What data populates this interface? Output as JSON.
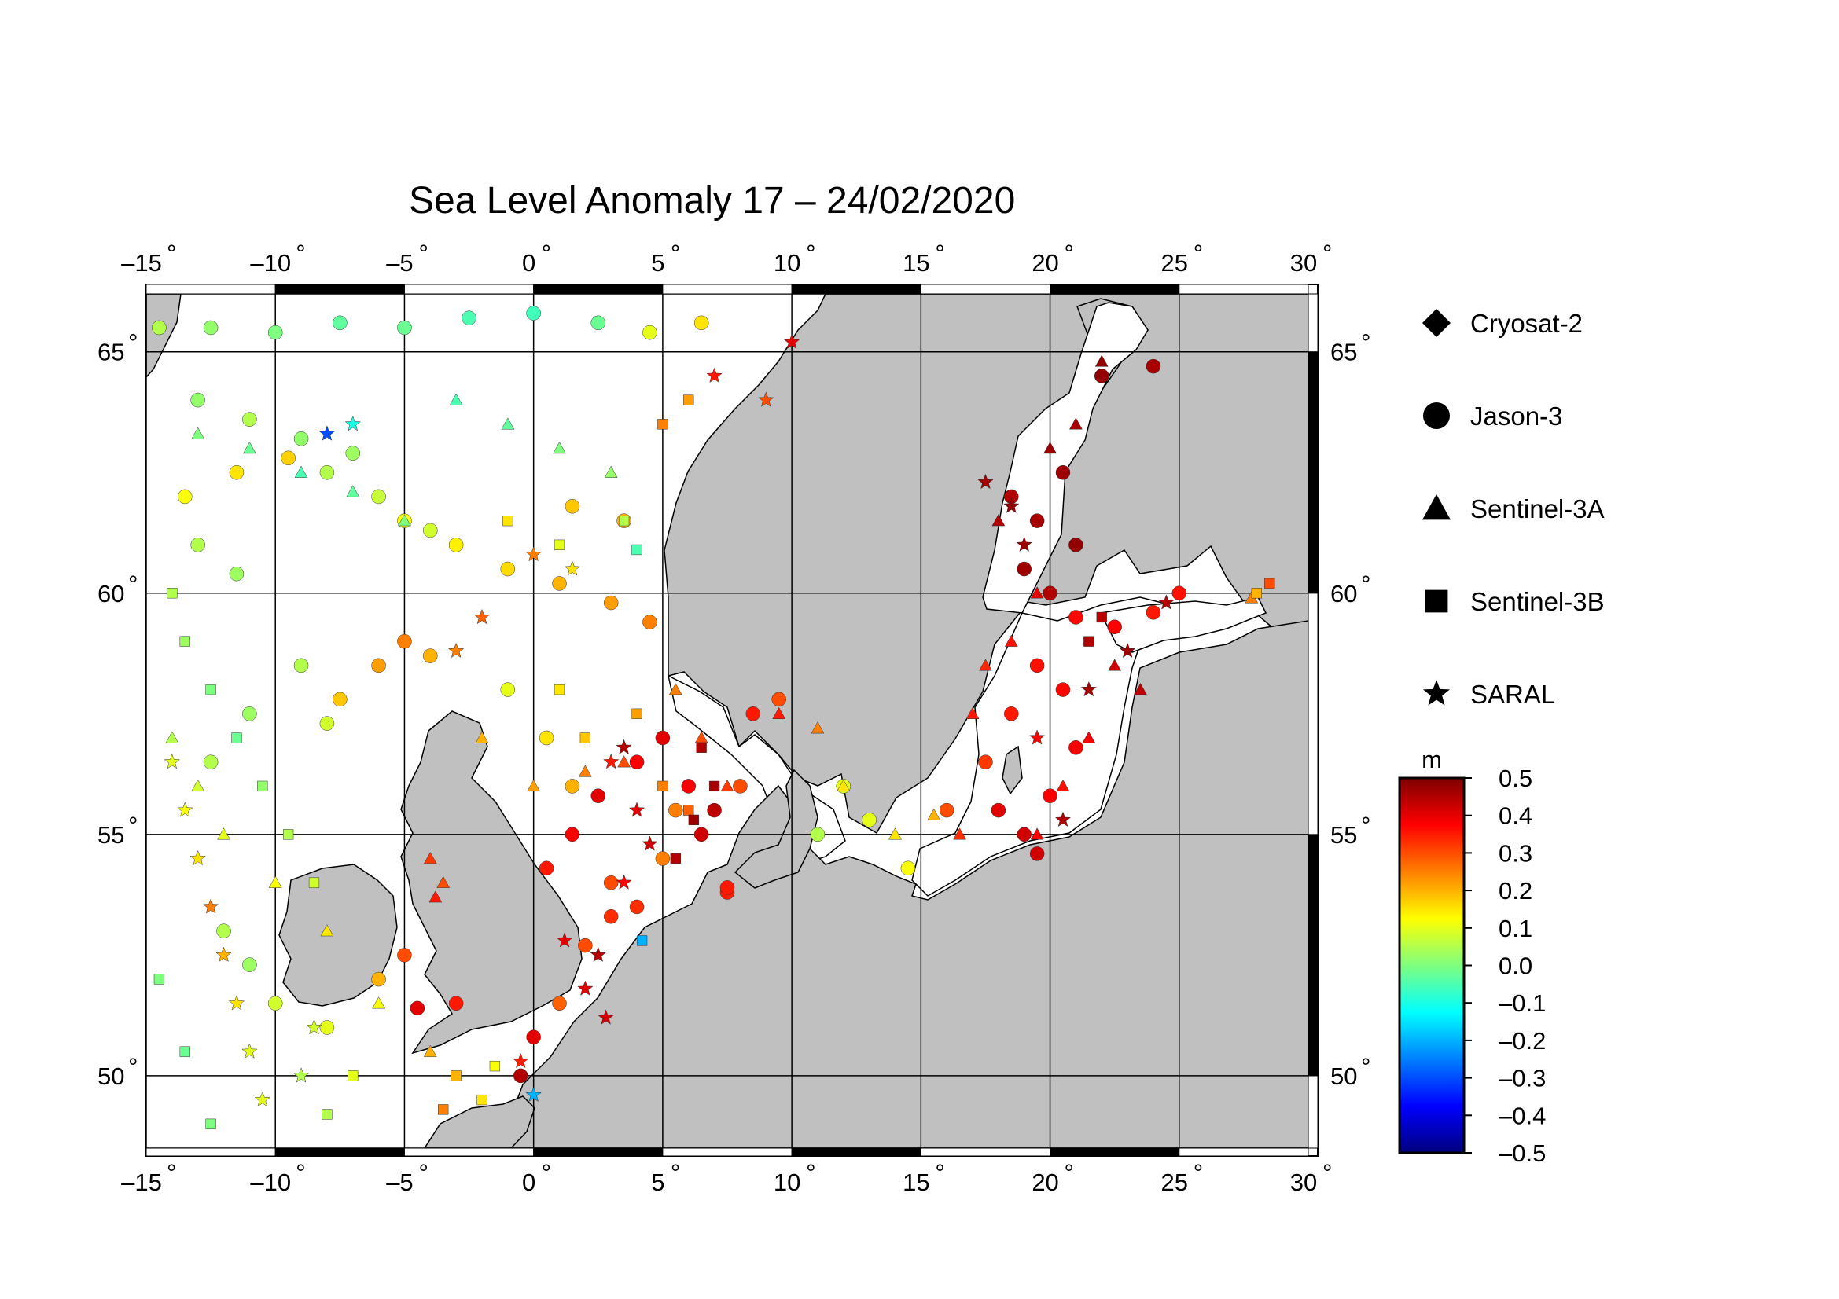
{
  "title": "Sea Level Anomaly 17 – 24/02/2020",
  "map": {
    "lon_range": [
      -15,
      30
    ],
    "lat_range": [
      48.5,
      66.2
    ],
    "lon_ticks": [
      "–15",
      "–10",
      "–5",
      "0",
      "5",
      "10",
      "15",
      "20",
      "25",
      "30"
    ],
    "lat_ticks": [
      "50",
      "55",
      "60",
      "65"
    ],
    "degree_symbol": "°",
    "land_color": "#c0c0c0",
    "sea_color": "#ffffff",
    "grid": true
  },
  "legend": {
    "items": [
      {
        "label": "Cryosat-2",
        "symbol": "diamond-icon"
      },
      {
        "label": "Jason-3",
        "symbol": "circle-icon"
      },
      {
        "label": "Sentinel-3A",
        "symbol": "triangle-icon"
      },
      {
        "label": "Sentinel-3B",
        "symbol": "square-icon"
      },
      {
        "label": "SARAL",
        "symbol": "star-icon"
      }
    ]
  },
  "colorbar": {
    "unit": "m",
    "min": -0.5,
    "max": 0.5,
    "labels": [
      "0.5",
      "0.4",
      "0.3",
      "0.2",
      "0.1",
      "0.0",
      "–0.1",
      "–0.2",
      "–0.3",
      "–0.4",
      "–0.5"
    ],
    "colors": [
      "#00007f",
      "#0000ff",
      "#007fff",
      "#00ffff",
      "#7fff7f",
      "#ffff00",
      "#ff7f00",
      "#ff0000",
      "#7f0000"
    ]
  },
  "chart_data": {
    "type": "scatter",
    "title": "Sea Level Anomaly 17 – 24/02/2020",
    "xlabel": "",
    "ylabel": "",
    "xlim": [
      -15,
      30
    ],
    "ylim": [
      48.5,
      66.2
    ],
    "value_unit": "m",
    "series": [
      {
        "name": "Jason-3",
        "symbol": "circle",
        "points": [
          [
            -14.5,
            65.5,
            0.05
          ],
          [
            -12.5,
            65.5,
            0.02
          ],
          [
            -10,
            65.4,
            0.0
          ],
          [
            -7.5,
            65.6,
            -0.03
          ],
          [
            -5,
            65.5,
            -0.02
          ],
          [
            -2.5,
            65.7,
            -0.05
          ],
          [
            0,
            65.8,
            -0.06
          ],
          [
            2.5,
            65.6,
            -0.02
          ],
          [
            4.5,
            65.4,
            0.1
          ],
          [
            6.5,
            65.6,
            0.15
          ],
          [
            -13,
            64.0,
            0.02
          ],
          [
            -11,
            63.6,
            0.05
          ],
          [
            -9,
            63.2,
            0.02
          ],
          [
            -7,
            62.9,
            0.03
          ],
          [
            -13.5,
            62.0,
            0.12
          ],
          [
            -11.5,
            62.5,
            0.15
          ],
          [
            -9.5,
            62.8,
            0.17
          ],
          [
            -13,
            61.0,
            0.05
          ],
          [
            -11.5,
            60.4,
            0.03
          ],
          [
            -5,
            61.5,
            0.12
          ],
          [
            -3,
            61.0,
            0.14
          ],
          [
            -1,
            60.5,
            0.16
          ],
          [
            1,
            60.2,
            0.2
          ],
          [
            3,
            59.8,
            0.22
          ],
          [
            4.5,
            59.4,
            0.25
          ],
          [
            -8,
            62.5,
            0.05
          ],
          [
            -6,
            62.0,
            0.07
          ],
          [
            -4,
            61.3,
            0.08
          ],
          [
            1.5,
            61.8,
            0.18
          ],
          [
            3.5,
            61.5,
            0.2
          ],
          [
            -9,
            58.5,
            0.05
          ],
          [
            -11,
            57.5,
            0.03
          ],
          [
            -12.5,
            56.5,
            0.05
          ],
          [
            -8,
            57.3,
            0.08
          ],
          [
            -5,
            59.0,
            0.25
          ],
          [
            -6,
            58.5,
            0.22
          ],
          [
            -7.5,
            57.8,
            0.18
          ],
          [
            -4,
            58.7,
            0.2
          ],
          [
            -1,
            58.0,
            0.1
          ],
          [
            0.5,
            57.0,
            0.15
          ],
          [
            1.5,
            56.0,
            0.2
          ],
          [
            2.5,
            55.8,
            0.4
          ],
          [
            1.5,
            55.0,
            0.38
          ],
          [
            0.5,
            54.3,
            0.35
          ],
          [
            3,
            54.0,
            0.3
          ],
          [
            4,
            53.5,
            0.33
          ],
          [
            5,
            54.5,
            0.25
          ],
          [
            5.5,
            55.5,
            0.25
          ],
          [
            6.5,
            55.0,
            0.42
          ],
          [
            7,
            55.5,
            0.44
          ],
          [
            6,
            56.0,
            0.38
          ],
          [
            8,
            56.0,
            0.3
          ],
          [
            8.5,
            57.5,
            0.35
          ],
          [
            9.5,
            57.8,
            0.3
          ],
          [
            7.5,
            53.8,
            0.35
          ],
          [
            5,
            57.0,
            0.4
          ],
          [
            4,
            56.5,
            0.38
          ],
          [
            3,
            53.3,
            0.33
          ],
          [
            2,
            52.7,
            0.3
          ],
          [
            1,
            51.5,
            0.28
          ],
          [
            0,
            50.8,
            0.4
          ],
          [
            -0.5,
            50.0,
            0.45
          ],
          [
            -3,
            51.5,
            0.35
          ],
          [
            -4.5,
            51.4,
            0.4
          ],
          [
            -5,
            52.5,
            0.3
          ],
          [
            -6,
            52.0,
            0.2
          ],
          [
            -12,
            53.0,
            0.05
          ],
          [
            -11,
            52.3,
            0.03
          ],
          [
            -10,
            51.5,
            0.08
          ],
          [
            -8,
            51.0,
            0.1
          ],
          [
            12,
            56.0,
            0.1
          ],
          [
            11,
            55.0,
            0.05
          ],
          [
            13,
            55.3,
            0.1
          ],
          [
            14.5,
            54.3,
            0.12
          ],
          [
            16,
            55.5,
            0.3
          ],
          [
            17.5,
            56.5,
            0.32
          ],
          [
            18.5,
            57.5,
            0.35
          ],
          [
            19.5,
            58.5,
            0.36
          ],
          [
            21,
            59.5,
            0.37
          ],
          [
            22.5,
            59.3,
            0.38
          ],
          [
            24,
            59.6,
            0.35
          ],
          [
            25,
            60.0,
            0.36
          ],
          [
            18,
            55.5,
            0.4
          ],
          [
            19,
            55.0,
            0.42
          ],
          [
            20,
            55.8,
            0.38
          ],
          [
            21,
            56.8,
            0.38
          ],
          [
            20.5,
            58.0,
            0.37
          ],
          [
            19.5,
            54.6,
            0.42
          ],
          [
            18.5,
            62.0,
            0.45
          ],
          [
            19.5,
            61.5,
            0.46
          ],
          [
            20.5,
            62.5,
            0.47
          ],
          [
            19,
            60.5,
            0.47
          ],
          [
            20,
            60.0,
            0.45
          ],
          [
            21,
            61.0,
            0.48
          ],
          [
            22,
            64.5,
            0.48
          ],
          [
            24,
            64.7,
            0.46
          ],
          [
            7.5,
            53.9,
            0.35
          ]
        ]
      },
      {
        "name": "Sentinel-3A",
        "symbol": "triangle",
        "points": [
          [
            -13,
            63.3,
            0.0
          ],
          [
            -11,
            63.0,
            -0.02
          ],
          [
            -9,
            62.5,
            -0.05
          ],
          [
            -7,
            62.1,
            -0.03
          ],
          [
            -5,
            61.5,
            0.0
          ],
          [
            -3,
            64.0,
            -0.05
          ],
          [
            -1,
            63.5,
            -0.03
          ],
          [
            1,
            63.0,
            0.0
          ],
          [
            3,
            62.5,
            0.02
          ],
          [
            -14,
            57.0,
            0.05
          ],
          [
            -13,
            56.0,
            0.08
          ],
          [
            -12,
            55.0,
            0.1
          ],
          [
            -10,
            54.0,
            0.12
          ],
          [
            -8,
            53.0,
            0.15
          ],
          [
            -6,
            51.5,
            0.12
          ],
          [
            -4,
            50.5,
            0.2
          ],
          [
            -2,
            57.0,
            0.2
          ],
          [
            0,
            56.0,
            0.22
          ],
          [
            2,
            56.3,
            0.25
          ],
          [
            3.5,
            56.5,
            0.3
          ],
          [
            5.5,
            58.0,
            0.25
          ],
          [
            6.5,
            57.0,
            0.3
          ],
          [
            7.5,
            56.0,
            0.32
          ],
          [
            9.5,
            57.5,
            0.35
          ],
          [
            11,
            57.2,
            0.25
          ],
          [
            12,
            56.0,
            0.15
          ],
          [
            14,
            55.0,
            0.15
          ],
          [
            15.5,
            55.4,
            0.2
          ],
          [
            17,
            57.5,
            0.35
          ],
          [
            17.5,
            58.5,
            0.34
          ],
          [
            18.5,
            59.0,
            0.36
          ],
          [
            19.5,
            60.0,
            0.4
          ],
          [
            18,
            61.5,
            0.45
          ],
          [
            20,
            63.0,
            0.47
          ],
          [
            21,
            63.5,
            0.46
          ],
          [
            22,
            64.8,
            0.48
          ],
          [
            22.5,
            58.5,
            0.42
          ],
          [
            23.5,
            58.0,
            0.44
          ],
          [
            21.5,
            57.0,
            0.38
          ],
          [
            20.5,
            56.0,
            0.36
          ],
          [
            19.5,
            55.0,
            0.38
          ],
          [
            16.5,
            55.0,
            0.33
          ],
          [
            -3.5,
            54.0,
            0.3
          ],
          [
            -4,
            54.5,
            0.32
          ],
          [
            -3.8,
            53.7,
            0.35
          ],
          [
            27.8,
            59.9,
            0.25
          ]
        ]
      },
      {
        "name": "Sentinel-3B",
        "symbol": "square",
        "points": [
          [
            -14,
            60.0,
            0.05
          ],
          [
            -13.5,
            59.0,
            0.03
          ],
          [
            -12.5,
            58.0,
            0.0
          ],
          [
            -11.5,
            57.0,
            -0.02
          ],
          [
            -10.5,
            56.0,
            0.02
          ],
          [
            -9.5,
            55.0,
            0.05
          ],
          [
            -8.5,
            54.0,
            0.08
          ],
          [
            -14.5,
            52.0,
            0.0
          ],
          [
            -13.5,
            50.5,
            -0.02
          ],
          [
            -12.5,
            49.0,
            0.0
          ],
          [
            -8,
            49.2,
            0.05
          ],
          [
            -7,
            50.0,
            0.1
          ],
          [
            1,
            58.0,
            0.15
          ],
          [
            2,
            57.0,
            0.18
          ],
          [
            4,
            57.5,
            0.22
          ],
          [
            5,
            56.0,
            0.25
          ],
          [
            6,
            55.5,
            0.28
          ],
          [
            6.5,
            56.8,
            0.45
          ],
          [
            7,
            56.0,
            0.46
          ],
          [
            6.2,
            55.3,
            0.47
          ],
          [
            5.5,
            54.5,
            0.45
          ],
          [
            -3,
            50.0,
            0.2
          ],
          [
            -2,
            49.5,
            0.15
          ],
          [
            -3.5,
            49.3,
            0.25
          ],
          [
            -1.5,
            50.2,
            0.12
          ],
          [
            21.5,
            59.0,
            0.45
          ],
          [
            22,
            59.5,
            0.44
          ],
          [
            28.5,
            60.2,
            0.3
          ],
          [
            28,
            60.0,
            0.2
          ],
          [
            4.2,
            52.8,
            -0.2
          ],
          [
            -1,
            61.5,
            0.15
          ],
          [
            1,
            61.0,
            0.1
          ],
          [
            3.5,
            61.5,
            0.05
          ],
          [
            4,
            60.9,
            -0.05
          ],
          [
            5,
            63.5,
            0.25
          ],
          [
            6,
            64.0,
            0.22
          ]
        ]
      },
      {
        "name": "SARAL",
        "symbol": "star",
        "points": [
          [
            -14,
            56.5,
            0.1
          ],
          [
            -13.5,
            55.5,
            0.12
          ],
          [
            -13,
            54.5,
            0.15
          ],
          [
            -12.5,
            53.5,
            0.25
          ],
          [
            -12,
            52.5,
            0.2
          ],
          [
            -11.5,
            51.5,
            0.15
          ],
          [
            -11,
            50.5,
            0.1
          ],
          [
            -10.5,
            49.5,
            0.1
          ],
          [
            -9,
            50.0,
            0.05
          ],
          [
            -8.5,
            51.0,
            0.08
          ],
          [
            -8,
            63.3,
            -0.3
          ],
          [
            -7,
            63.5,
            -0.1
          ],
          [
            -3,
            58.8,
            0.25
          ],
          [
            -2,
            59.5,
            0.28
          ],
          [
            0,
            60.8,
            0.25
          ],
          [
            1.5,
            60.5,
            0.15
          ],
          [
            3,
            56.5,
            0.35
          ],
          [
            3.5,
            56.8,
            0.45
          ],
          [
            4,
            55.5,
            0.4
          ],
          [
            4.5,
            54.8,
            0.42
          ],
          [
            2.5,
            52.5,
            0.45
          ],
          [
            3.5,
            54.0,
            0.38
          ],
          [
            2,
            51.8,
            0.4
          ],
          [
            2.8,
            51.2,
            0.42
          ],
          [
            -0.5,
            50.3,
            0.35
          ],
          [
            0,
            49.6,
            -0.2
          ],
          [
            1.2,
            52.8,
            0.4
          ],
          [
            19,
            61.0,
            0.47
          ],
          [
            18.5,
            61.8,
            0.48
          ],
          [
            17.5,
            62.3,
            0.47
          ],
          [
            19.5,
            57.0,
            0.38
          ],
          [
            20.5,
            55.3,
            0.45
          ],
          [
            21.5,
            58.0,
            0.46
          ],
          [
            23,
            58.8,
            0.47
          ],
          [
            24.5,
            59.8,
            0.45
          ],
          [
            9,
            64.0,
            0.3
          ],
          [
            10,
            65.2,
            0.4
          ],
          [
            7,
            64.5,
            0.35
          ]
        ]
      },
      {
        "name": "Cryosat-2",
        "symbol": "diamond",
        "points": []
      }
    ]
  }
}
